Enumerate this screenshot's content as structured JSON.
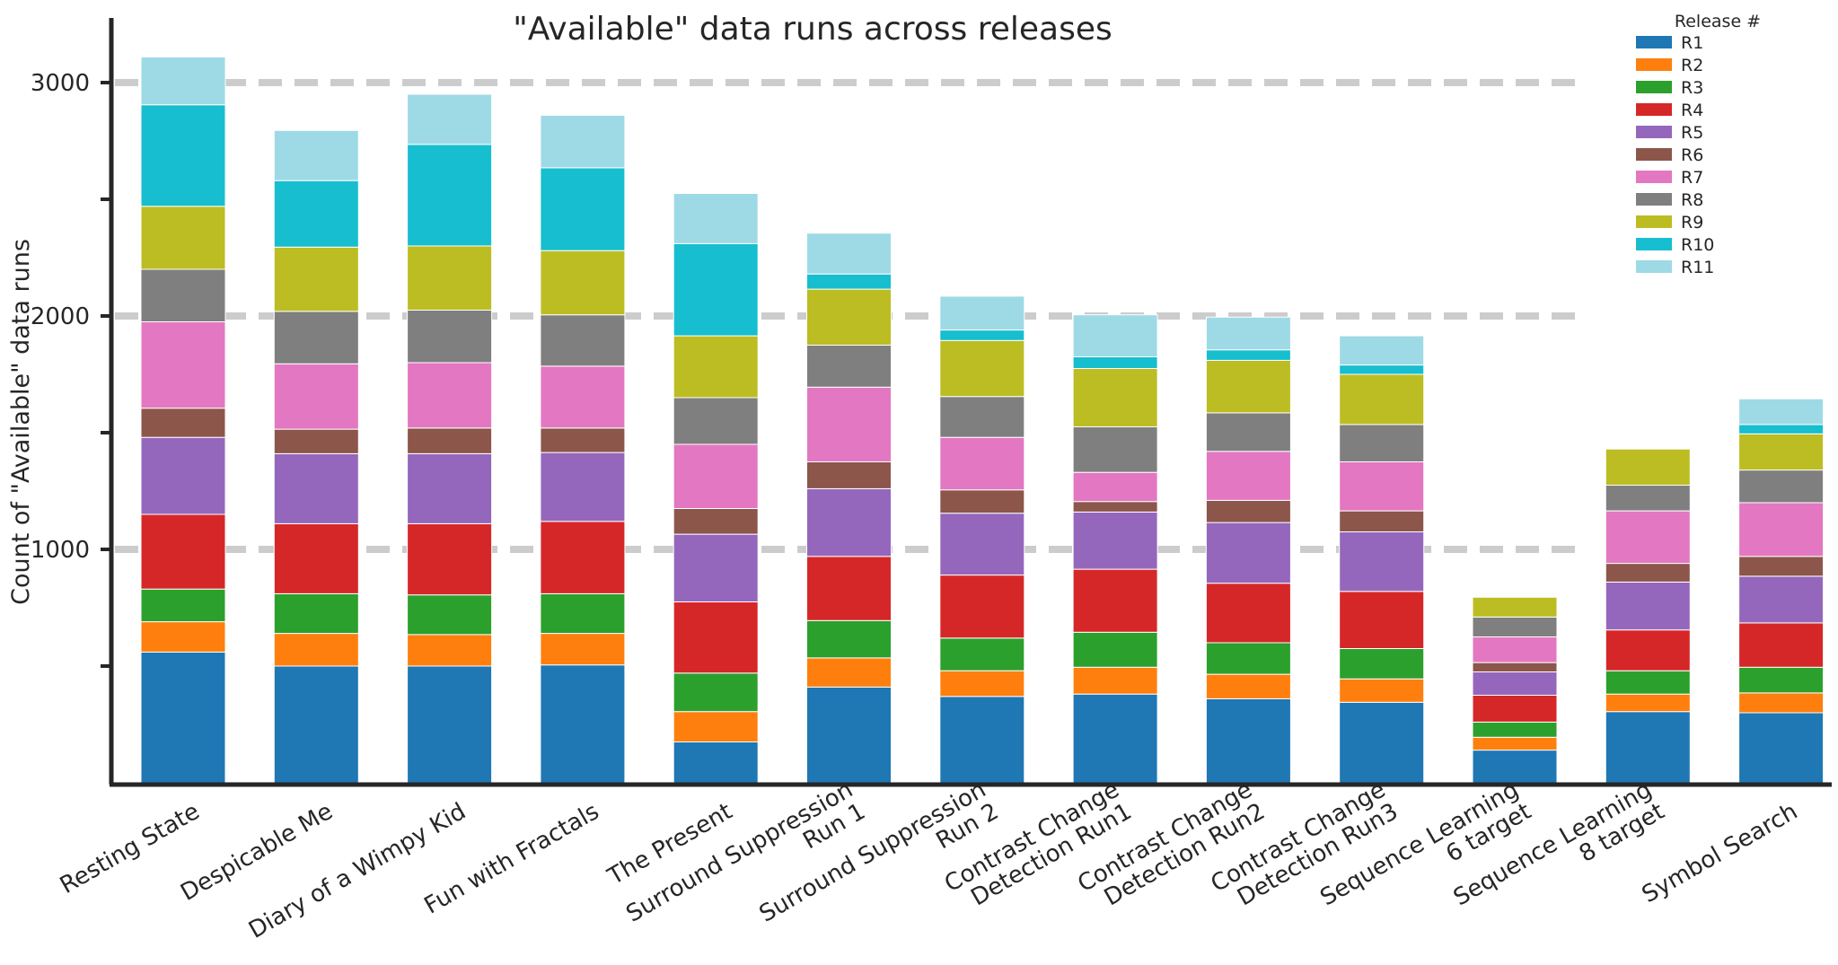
{
  "chart_data": {
    "type": "bar",
    "stacked": true,
    "title": "\"Available\" data runs across releases",
    "xlabel": "",
    "ylabel": "Count of \"Available\" data runs",
    "ylim": [
      0,
      3200
    ],
    "yticks": [
      1000,
      2000,
      3000
    ],
    "grid": "dashed horizontal at 1000, 2000, 3000",
    "legend_title": "Release #",
    "legend_position": "top-right",
    "categories": [
      [
        "Resting State"
      ],
      [
        "Despicable Me"
      ],
      [
        "Diary of a Wimpy Kid"
      ],
      [
        "Fun with Fractals"
      ],
      [
        "The Present"
      ],
      [
        "Surround Suppression",
        "Run 1"
      ],
      [
        "Surround Suppression",
        "Run 2"
      ],
      [
        "Contrast Change",
        "Detection Run1"
      ],
      [
        "Contrast Change",
        "Detection Run2"
      ],
      [
        "Contrast Change",
        "Detection Run3"
      ],
      [
        "Sequence Learning",
        "6 target"
      ],
      [
        "Sequence Learning",
        "8 target"
      ],
      [
        "Symbol Search"
      ]
    ],
    "series": [
      {
        "name": "R1",
        "color": "#1f77b4",
        "values": [
          560,
          500,
          500,
          505,
          175,
          410,
          370,
          380,
          360,
          345,
          140,
          305,
          300
        ]
      },
      {
        "name": "R2",
        "color": "#ff7f0e",
        "values": [
          130,
          140,
          135,
          135,
          130,
          125,
          110,
          115,
          105,
          100,
          55,
          75,
          85
        ]
      },
      {
        "name": "R3",
        "color": "#2ca02c",
        "values": [
          140,
          170,
          170,
          170,
          165,
          160,
          140,
          150,
          135,
          130,
          65,
          100,
          110
        ]
      },
      {
        "name": "R4",
        "color": "#d62728",
        "values": [
          320,
          300,
          305,
          310,
          305,
          275,
          270,
          270,
          255,
          245,
          115,
          175,
          190
        ]
      },
      {
        "name": "R5",
        "color": "#9467bd",
        "values": [
          330,
          300,
          300,
          295,
          290,
          290,
          265,
          245,
          260,
          255,
          100,
          205,
          200
        ]
      },
      {
        "name": "R6",
        "color": "#8c564b",
        "values": [
          125,
          105,
          110,
          105,
          110,
          115,
          100,
          45,
          95,
          90,
          40,
          80,
          85
        ]
      },
      {
        "name": "R7",
        "color": "#e377c2",
        "values": [
          370,
          280,
          280,
          265,
          275,
          320,
          225,
          125,
          210,
          210,
          110,
          225,
          230
        ]
      },
      {
        "name": "R8",
        "color": "#7f7f7f",
        "values": [
          225,
          225,
          225,
          220,
          200,
          180,
          175,
          195,
          165,
          160,
          85,
          110,
          140
        ]
      },
      {
        "name": "R9",
        "color": "#bcbd22",
        "values": [
          270,
          275,
          275,
          275,
          265,
          240,
          240,
          250,
          225,
          215,
          85,
          155,
          155
        ]
      },
      {
        "name": "R10",
        "color": "#17becf",
        "values": [
          435,
          285,
          435,
          355,
          395,
          65,
          45,
          50,
          45,
          40,
          0,
          0,
          40
        ]
      },
      {
        "name": "R11",
        "color": "#9edae5",
        "values": [
          205,
          215,
          215,
          225,
          215,
          175,
          145,
          180,
          140,
          125,
          0,
          0,
          110
        ]
      }
    ]
  }
}
